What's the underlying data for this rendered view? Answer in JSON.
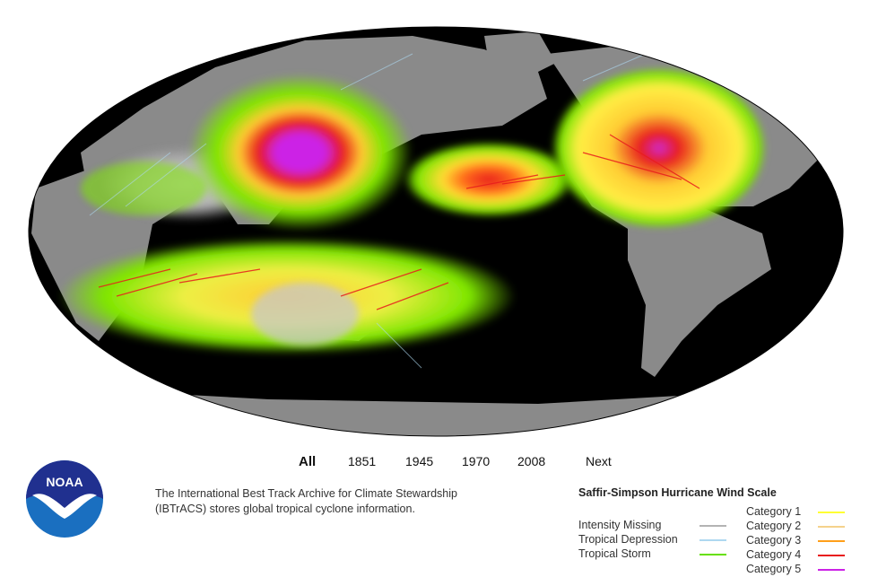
{
  "nav": {
    "items": [
      {
        "label": "All",
        "active": true
      },
      {
        "label": "1851",
        "active": false
      },
      {
        "label": "1945",
        "active": false
      },
      {
        "label": "1970",
        "active": false
      },
      {
        "label": "2008",
        "active": false
      },
      {
        "label": "Next",
        "active": false
      }
    ]
  },
  "logo": {
    "text": "NOAA",
    "icon": "noaa-logo-icon"
  },
  "description": {
    "line1": "The International Best Track Archive for Climate Stewardship",
    "line2": "(IBTrACS) stores global tropical cyclone information."
  },
  "legend": {
    "title": "Saffir-Simpson Hurricane Wind Scale",
    "left": [
      {
        "label": "Intensity Missing",
        "color": "#b3b3b3"
      },
      {
        "label": "Tropical Depression",
        "color": "#aed8f0"
      },
      {
        "label": "Tropical Storm",
        "color": "#66e000"
      }
    ],
    "right": [
      {
        "label": "Category 1",
        "color": "#ffff33"
      },
      {
        "label": "Category 2",
        "color": "#f5d28c"
      },
      {
        "label": "Category 3",
        "color": "#ff9f1a"
      },
      {
        "label": "Category 4",
        "color": "#e81d1d"
      },
      {
        "label": "Category 5",
        "color": "#cc22e6"
      }
    ]
  },
  "map": {
    "projection": "Mollweide",
    "ocean_color": "#000000",
    "land_color": "#8a8a8a"
  }
}
